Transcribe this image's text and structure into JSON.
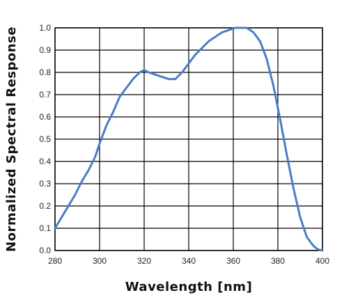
{
  "chart_data": {
    "type": "line",
    "xlabel": "Wavelength [nm]",
    "ylabel": "Normalized Spectral Response",
    "xlim": [
      280,
      400
    ],
    "ylim": [
      0.0,
      1.0
    ],
    "x_ticks": [
      "280",
      "300",
      "320",
      "340",
      "360",
      "380",
      "400"
    ],
    "y_ticks": [
      "0.0",
      "0.1",
      "0.2",
      "0.3",
      "0.4",
      "0.5",
      "0.6",
      "0.7",
      "0.8",
      "0.9",
      "1.0"
    ],
    "grid": true,
    "line_color": "#4a7cc7",
    "series": [
      {
        "x": [
          280,
          283,
          286,
          289,
          292,
          295,
          298,
          300,
          303,
          306,
          309,
          312,
          315,
          318,
          320,
          322,
          325,
          328,
          331,
          334,
          337,
          340,
          343,
          346,
          349,
          352,
          355,
          358,
          361,
          364,
          366,
          369,
          372,
          375,
          378,
          381,
          384,
          387,
          390,
          393,
          396,
          398,
          400
        ],
        "y": [
          0.1,
          0.15,
          0.2,
          0.25,
          0.31,
          0.36,
          0.42,
          0.48,
          0.56,
          0.62,
          0.69,
          0.73,
          0.77,
          0.8,
          0.81,
          0.8,
          0.79,
          0.78,
          0.77,
          0.77,
          0.8,
          0.84,
          0.88,
          0.91,
          0.94,
          0.96,
          0.98,
          0.99,
          1.0,
          1.0,
          1.0,
          0.98,
          0.94,
          0.86,
          0.74,
          0.59,
          0.43,
          0.28,
          0.15,
          0.06,
          0.02,
          0.005,
          0.0
        ]
      }
    ]
  }
}
